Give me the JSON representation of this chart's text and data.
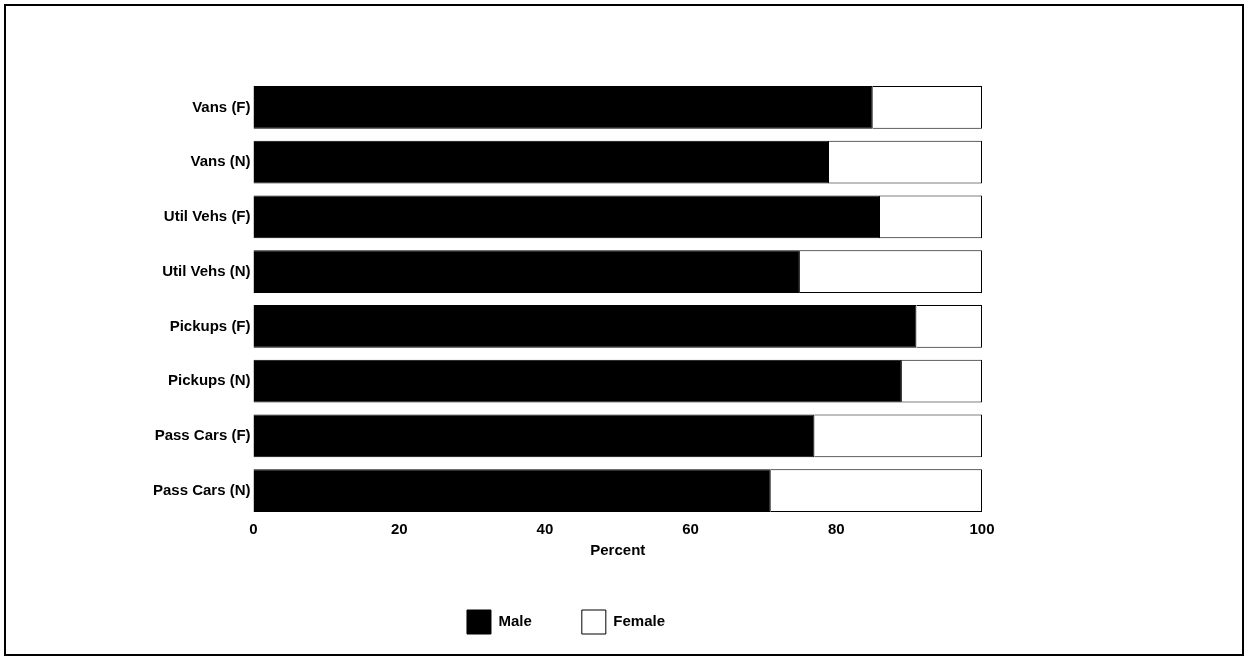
{
  "chart_data": {
    "type": "bar",
    "orientation": "horizontal",
    "stacked": true,
    "categories": [
      "Vans (F)",
      "Vans (N)",
      "Util Vehs (F)",
      "Util Vehs (N)",
      "Pickups (F)",
      "Pickups (N)",
      "Pass Cars (F)",
      "Pass Cars (N)"
    ],
    "series": [
      {
        "name": "Male",
        "color": "#000000",
        "values": [
          85,
          79,
          86,
          75,
          91,
          89,
          77,
          71
        ]
      },
      {
        "name": "Female",
        "color": "#ffffff",
        "values": [
          15,
          21,
          14,
          25,
          9,
          11,
          23,
          29
        ]
      }
    ],
    "xlabel": "Percent",
    "xlim": [
      0,
      100
    ],
    "xticks": [
      0,
      20,
      40,
      60,
      80,
      100
    ],
    "grid": false,
    "legend": "bottom"
  }
}
